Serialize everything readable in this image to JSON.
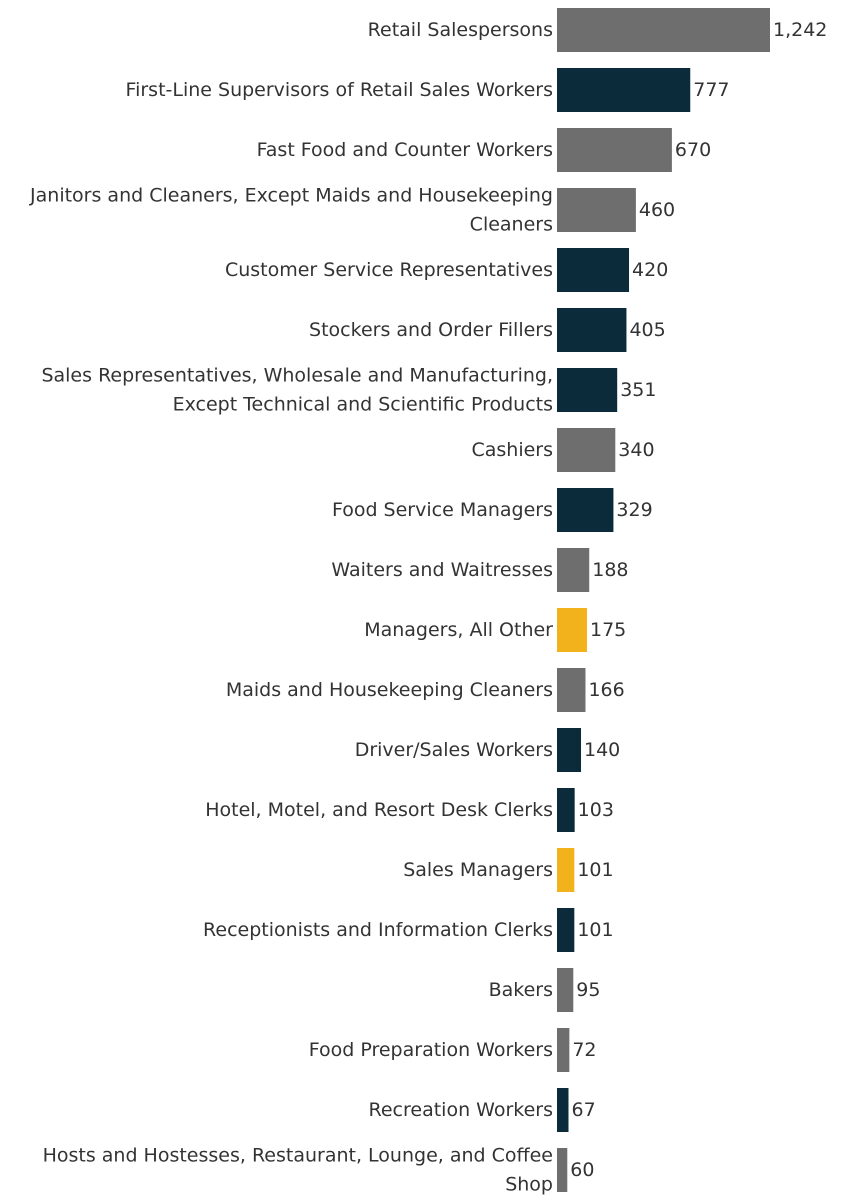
{
  "chart_data": {
    "type": "bar",
    "orientation": "horizontal",
    "title": "",
    "xlabel": "",
    "ylabel": "",
    "grid": false,
    "xlim": [
      0,
      1242
    ],
    "colors": {
      "gray": "#6e6e6e",
      "navy": "#0b2a3a",
      "gold": "#f2b21c"
    },
    "bars": [
      {
        "label_lines": [
          "Retail Salespersons"
        ],
        "value": 1242,
        "value_label": "1,242",
        "color": "gray"
      },
      {
        "label_lines": [
          "First-Line Supervisors of Retail Sales Workers"
        ],
        "value": 777,
        "value_label": "777",
        "color": "navy"
      },
      {
        "label_lines": [
          "Fast Food and Counter Workers"
        ],
        "value": 670,
        "value_label": "670",
        "color": "gray"
      },
      {
        "label_lines": [
          "Janitors and Cleaners, Except Maids and Housekeeping",
          "Cleaners"
        ],
        "value": 460,
        "value_label": "460",
        "color": "gray"
      },
      {
        "label_lines": [
          "Customer Service Representatives"
        ],
        "value": 420,
        "value_label": "420",
        "color": "navy"
      },
      {
        "label_lines": [
          "Stockers and Order Fillers"
        ],
        "value": 405,
        "value_label": "405",
        "color": "navy"
      },
      {
        "label_lines": [
          "Sales Representatives, Wholesale and Manufacturing,",
          "Except Technical and Scientific Products"
        ],
        "value": 351,
        "value_label": "351",
        "color": "navy"
      },
      {
        "label_lines": [
          "Cashiers"
        ],
        "value": 340,
        "value_label": "340",
        "color": "gray"
      },
      {
        "label_lines": [
          "Food Service Managers"
        ],
        "value": 329,
        "value_label": "329",
        "color": "navy"
      },
      {
        "label_lines": [
          "Waiters and Waitresses"
        ],
        "value": 188,
        "value_label": "188",
        "color": "gray"
      },
      {
        "label_lines": [
          "Managers, All Other"
        ],
        "value": 175,
        "value_label": "175",
        "color": "gold"
      },
      {
        "label_lines": [
          "Maids and Housekeeping Cleaners"
        ],
        "value": 166,
        "value_label": "166",
        "color": "gray"
      },
      {
        "label_lines": [
          "Driver/Sales Workers"
        ],
        "value": 140,
        "value_label": "140",
        "color": "navy"
      },
      {
        "label_lines": [
          "Hotel, Motel, and Resort Desk Clerks"
        ],
        "value": 103,
        "value_label": "103",
        "color": "navy"
      },
      {
        "label_lines": [
          "Sales Managers"
        ],
        "value": 101,
        "value_label": "101",
        "color": "gold"
      },
      {
        "label_lines": [
          "Receptionists and Information Clerks"
        ],
        "value": 101,
        "value_label": "101",
        "color": "navy"
      },
      {
        "label_lines": [
          "Bakers"
        ],
        "value": 95,
        "value_label": "95",
        "color": "gray"
      },
      {
        "label_lines": [
          "Food Preparation Workers"
        ],
        "value": 72,
        "value_label": "72",
        "color": "gray"
      },
      {
        "label_lines": [
          "Recreation Workers"
        ],
        "value": 67,
        "value_label": "67",
        "color": "navy"
      },
      {
        "label_lines": [
          "Hosts and Hostesses, Restaurant, Lounge, and Coffee",
          "Shop"
        ],
        "value": 60,
        "value_label": "60",
        "color": "gray"
      }
    ]
  }
}
